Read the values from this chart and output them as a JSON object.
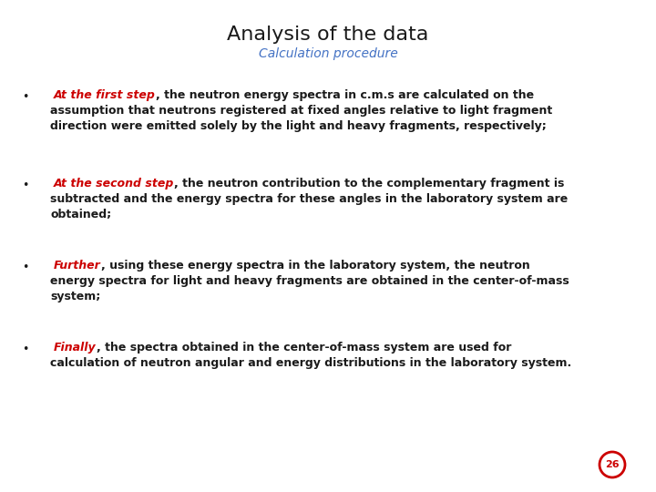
{
  "title": "Analysis of the data",
  "subtitle": "Calculation procedure",
  "title_color": "#1a1a1a",
  "subtitle_color": "#4472c4",
  "background_color": "#ffffff",
  "bullet_color": "#1a1a1a",
  "body_color": "#1a1a1a",
  "highlight_color": "#cc0000",
  "page_number": "26",
  "page_number_color": "#cc0000",
  "title_fontsize": 16,
  "subtitle_fontsize": 10,
  "body_fontsize": 9,
  "bullets": [
    {
      "highlight": "At the first step",
      "line1_rest": ", the neutron energy spectra in c.m.s are calculated on the",
      "line2": "assumption that neutrons registered at fixed angles relative to light fragment",
      "line3": "direction were emitted solely by the light and heavy fragments, respectively;"
    },
    {
      "highlight": "At the second step",
      "line1_rest": ", the neutron contribution to the complementary fragment is",
      "line2": "subtracted and the energy spectra for these angles in the laboratory system are",
      "line3": "obtained;"
    },
    {
      "highlight": "Further",
      "line1_rest": ", using these energy spectra in the laboratory system, the neutron",
      "line2": "energy spectra for light and heavy fragments are obtained in the center-of-mass",
      "line3": "system;"
    },
    {
      "highlight": "Finally",
      "line1_rest": ", the spectra obtained in the center-of-mass system are used for",
      "line2": "calculation of neutron angular and energy distributions in the laboratory system.",
      "line3": ""
    }
  ]
}
